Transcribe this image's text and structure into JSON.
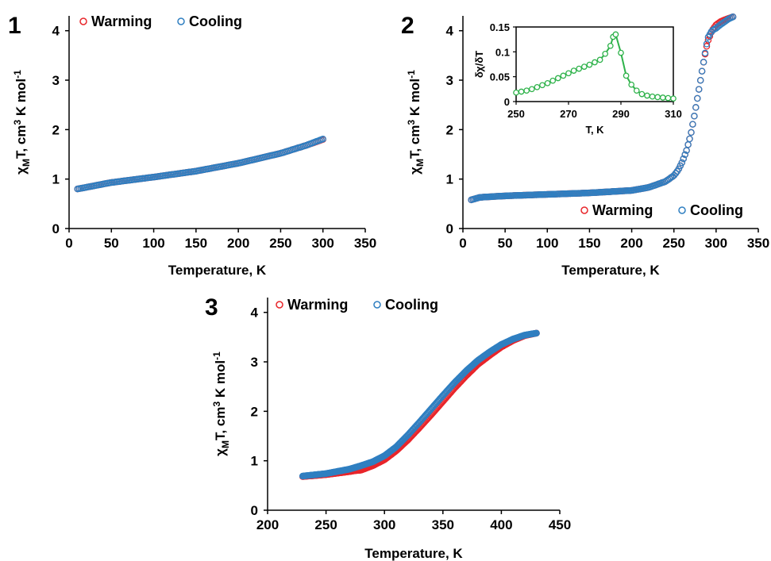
{
  "colors": {
    "warming": "#e8252a",
    "cooling": "#2f7fc1",
    "derivative": "#2eb24a",
    "axis": "#000000"
  },
  "chart_data": [
    {
      "type": "scatter",
      "panel_label": "1",
      "xlabel": "Temperature, K",
      "ylabel_main": "χ",
      "ylabel_sub": "M",
      "ylabel_rest": "T, cm",
      "ylabel_sup": "3",
      "ylabel_end": " K mol",
      "ylabel_sup2": "-1",
      "xlim": [
        0,
        350
      ],
      "ylim": [
        0,
        4.3
      ],
      "x_ticks": [
        "0",
        "50",
        "100",
        "150",
        "200",
        "250",
        "300",
        "350"
      ],
      "y_ticks": [
        "0",
        "1",
        "2",
        "3",
        "4"
      ],
      "legend": {
        "position": "top-left",
        "entries": [
          "Warming",
          "Cooling"
        ]
      },
      "series": [
        {
          "name": "Warming",
          "marker": "open-circle",
          "x": [
            10,
            50,
            100,
            150,
            200,
            250,
            280,
            300
          ],
          "y": [
            0.8,
            0.93,
            1.04,
            1.16,
            1.32,
            1.52,
            1.68,
            1.8
          ]
        },
        {
          "name": "Cooling",
          "marker": "open-circle",
          "x": [
            10,
            50,
            100,
            150,
            200,
            250,
            280,
            300
          ],
          "y": [
            0.8,
            0.93,
            1.04,
            1.16,
            1.32,
            1.52,
            1.68,
            1.81
          ]
        }
      ]
    },
    {
      "type": "scatter",
      "panel_label": "2",
      "xlabel": "Temperature, K",
      "ylabel_main": "χ",
      "ylabel_sub": "M",
      "ylabel_rest": "T, cm",
      "ylabel_sup": "3",
      "ylabel_end": " K mol",
      "ylabel_sup2": "-1",
      "xlim": [
        0,
        350
      ],
      "ylim": [
        0,
        4.3
      ],
      "x_ticks": [
        "0",
        "50",
        "100",
        "150",
        "200",
        "250",
        "300",
        "350"
      ],
      "y_ticks": [
        "0",
        "1",
        "2",
        "3",
        "4"
      ],
      "legend": {
        "position": "bottom-right",
        "entries": [
          "Warming",
          "Cooling"
        ]
      },
      "series": [
        {
          "name": "Warming",
          "marker": "open-circle",
          "x": [
            10,
            20,
            50,
            100,
            150,
            200,
            220,
            240,
            250,
            255,
            260,
            265,
            270,
            275,
            280,
            285,
            288,
            290,
            295,
            300,
            305,
            310,
            315,
            320
          ],
          "y": [
            0.58,
            0.63,
            0.66,
            0.69,
            0.72,
            0.77,
            0.83,
            0.95,
            1.07,
            1.18,
            1.35,
            1.58,
            1.9,
            2.35,
            2.85,
            3.35,
            3.62,
            3.78,
            4.0,
            4.12,
            4.18,
            4.22,
            4.25,
            4.28
          ]
        },
        {
          "name": "Cooling",
          "marker": "open-circle",
          "x": [
            10,
            20,
            50,
            100,
            150,
            200,
            220,
            240,
            250,
            255,
            260,
            265,
            270,
            275,
            280,
            285,
            288,
            290,
            295,
            300,
            305,
            310,
            315,
            320
          ],
          "y": [
            0.58,
            0.63,
            0.66,
            0.69,
            0.72,
            0.77,
            0.83,
            0.95,
            1.07,
            1.18,
            1.35,
            1.58,
            1.9,
            2.35,
            2.85,
            3.35,
            3.65,
            3.85,
            4.0,
            4.05,
            4.12,
            4.18,
            4.24,
            4.28
          ]
        }
      ],
      "inset": {
        "type": "line",
        "xlabel": "T, K",
        "ylabel": "δχ/δT",
        "xlim": [
          250,
          310
        ],
        "ylim": [
          0,
          0.15
        ],
        "x_ticks": [
          "250",
          "270",
          "290",
          "310"
        ],
        "y_ticks": [
          "0",
          "0.05",
          "0.1",
          "0.15"
        ],
        "x": [
          250,
          252,
          254,
          256,
          258,
          260,
          262,
          264,
          266,
          268,
          270,
          272,
          274,
          276,
          278,
          280,
          282,
          284,
          286,
          287,
          288,
          290,
          292,
          294,
          296,
          298,
          300,
          302,
          304,
          306,
          308,
          310
        ],
        "y": [
          0.018,
          0.02,
          0.022,
          0.025,
          0.029,
          0.033,
          0.037,
          0.042,
          0.047,
          0.052,
          0.057,
          0.062,
          0.066,
          0.07,
          0.074,
          0.079,
          0.084,
          0.096,
          0.112,
          0.13,
          0.135,
          0.098,
          0.052,
          0.034,
          0.022,
          0.015,
          0.012,
          0.01,
          0.009,
          0.008,
          0.007,
          0.006
        ]
      }
    },
    {
      "type": "scatter",
      "panel_label": "3",
      "xlabel": "Temperature, K",
      "ylabel_main": "χ",
      "ylabel_sub": "M",
      "ylabel_rest": "T, cm",
      "ylabel_sup": "3",
      "ylabel_end": " K mol",
      "ylabel_sup2": "-1",
      "xlim": [
        200,
        450
      ],
      "ylim": [
        0,
        4.3
      ],
      "x_ticks": [
        "200",
        "250",
        "300",
        "350",
        "400",
        "450"
      ],
      "y_ticks": [
        "0",
        "1",
        "2",
        "3",
        "4"
      ],
      "legend": {
        "position": "top-left",
        "entries": [
          "Warming",
          "Cooling"
        ]
      },
      "series": [
        {
          "name": "Warming",
          "marker": "open-circle",
          "x": [
            230,
            250,
            270,
            275,
            280,
            290,
            300,
            310,
            320,
            330,
            340,
            350,
            360,
            370,
            380,
            390,
            400,
            410,
            420,
            430
          ],
          "y": [
            0.68,
            0.72,
            0.78,
            0.8,
            0.81,
            0.9,
            1.02,
            1.2,
            1.42,
            1.67,
            1.93,
            2.2,
            2.47,
            2.72,
            2.95,
            3.13,
            3.3,
            3.43,
            3.53,
            3.58
          ]
        },
        {
          "name": "Cooling",
          "marker": "open-circle",
          "x": [
            230,
            250,
            270,
            280,
            290,
            300,
            310,
            320,
            330,
            340,
            350,
            360,
            370,
            380,
            390,
            400,
            410,
            420,
            430
          ],
          "y": [
            0.69,
            0.74,
            0.83,
            0.9,
            0.98,
            1.1,
            1.28,
            1.52,
            1.78,
            2.05,
            2.32,
            2.58,
            2.82,
            3.03,
            3.2,
            3.35,
            3.46,
            3.54,
            3.58
          ]
        }
      ]
    }
  ]
}
